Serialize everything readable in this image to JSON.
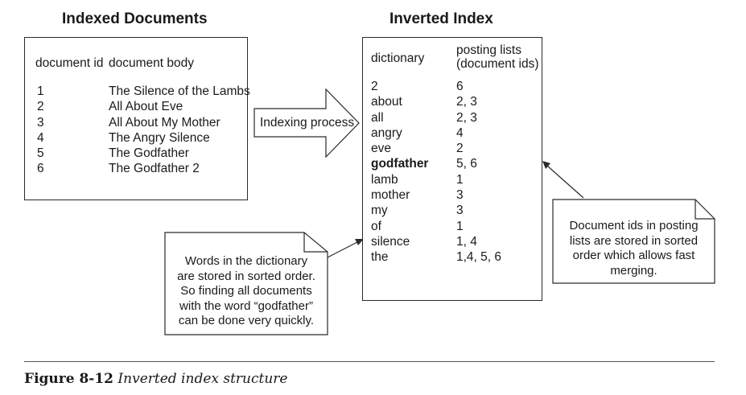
{
  "indexed": {
    "title": "Indexed Documents",
    "header_id": "document id",
    "header_body": "document body",
    "rows": [
      {
        "id": "1",
        "body": "The Silence of the Lambs"
      },
      {
        "id": "2",
        "body": "All About Eve"
      },
      {
        "id": "3",
        "body": "All About My Mother"
      },
      {
        "id": "4",
        "body": "The Angry Silence"
      },
      {
        "id": "5",
        "body": "The Godfather"
      },
      {
        "id": "6",
        "body": "The Godfather 2"
      }
    ]
  },
  "process": {
    "label": "Indexing process"
  },
  "inverted": {
    "title": "Inverted Index",
    "header_dictionary": "dictionary",
    "header_posting_1": "posting lists",
    "header_posting_2": "(document ids)",
    "entries": [
      {
        "term": "2",
        "postings": "6"
      },
      {
        "term": "about",
        "postings": "2, 3"
      },
      {
        "term": "all",
        "postings": "2, 3"
      },
      {
        "term": "angry",
        "postings": "4"
      },
      {
        "term": "eve",
        "postings": "2"
      },
      {
        "term": "godfather",
        "postings": "5, 6"
      },
      {
        "term": "lamb",
        "postings": "1"
      },
      {
        "term": "mother",
        "postings": "3"
      },
      {
        "term": "my",
        "postings": "3"
      },
      {
        "term": "of",
        "postings": "1"
      },
      {
        "term": "silence",
        "postings": "1, 4"
      },
      {
        "term": "the",
        "postings": "1,4, 5, 6"
      }
    ]
  },
  "note_left": {
    "lines": [
      "Words in the dictionary",
      "are stored in sorted order.",
      "So finding all documents",
      "with the word “godfather”",
      "can be done very quickly."
    ]
  },
  "note_right": {
    "lines": [
      "Document ids in posting",
      "lists are stored in sorted",
      "order which allows fast",
      "merging."
    ]
  },
  "caption": {
    "figure": "Figure 8-12",
    "text": "Inverted index structure"
  }
}
